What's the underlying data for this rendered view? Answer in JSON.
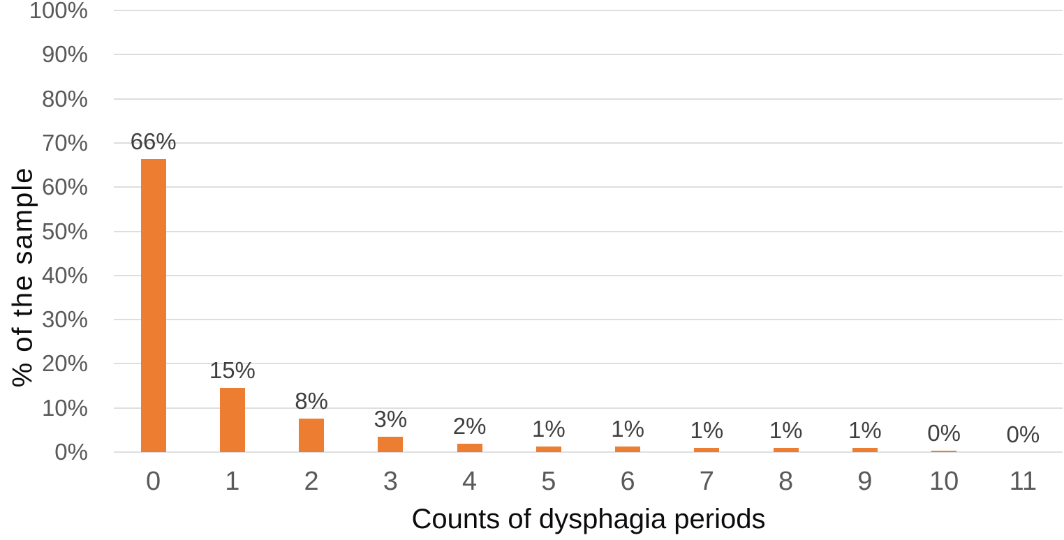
{
  "chart_data": {
    "type": "bar",
    "title": "",
    "xlabel": "Counts of dysphagia periods",
    "ylabel": "% of the sample",
    "categories": [
      "0",
      "1",
      "2",
      "3",
      "4",
      "5",
      "6",
      "7",
      "8",
      "9",
      "10",
      "11"
    ],
    "values": [
      66.4,
      14.6,
      7.6,
      3.4,
      1.9,
      1.2,
      1.2,
      0.9,
      0.9,
      0.9,
      0.3,
      0
    ],
    "data_labels": [
      "66%",
      "15%",
      "8%",
      "3%",
      "2%",
      "1%",
      "1%",
      "1%",
      "1%",
      "1%",
      "0%",
      "0%"
    ],
    "ylim": [
      0,
      100
    ],
    "ytick_step": 10,
    "ytick_labels": [
      "0%",
      "10%",
      "20%",
      "30%",
      "40%",
      "50%",
      "60%",
      "70%",
      "80%",
      "90%",
      "100%"
    ],
    "grid": "horizontal",
    "legend": "none",
    "colors": {
      "bar": "#ED7D31",
      "gridline": "#DEDEDE",
      "tick_label": "#595959",
      "data_label": "#3F3F3F",
      "axis_title": "#0C0C0C",
      "background": "#FFFFFF"
    }
  }
}
